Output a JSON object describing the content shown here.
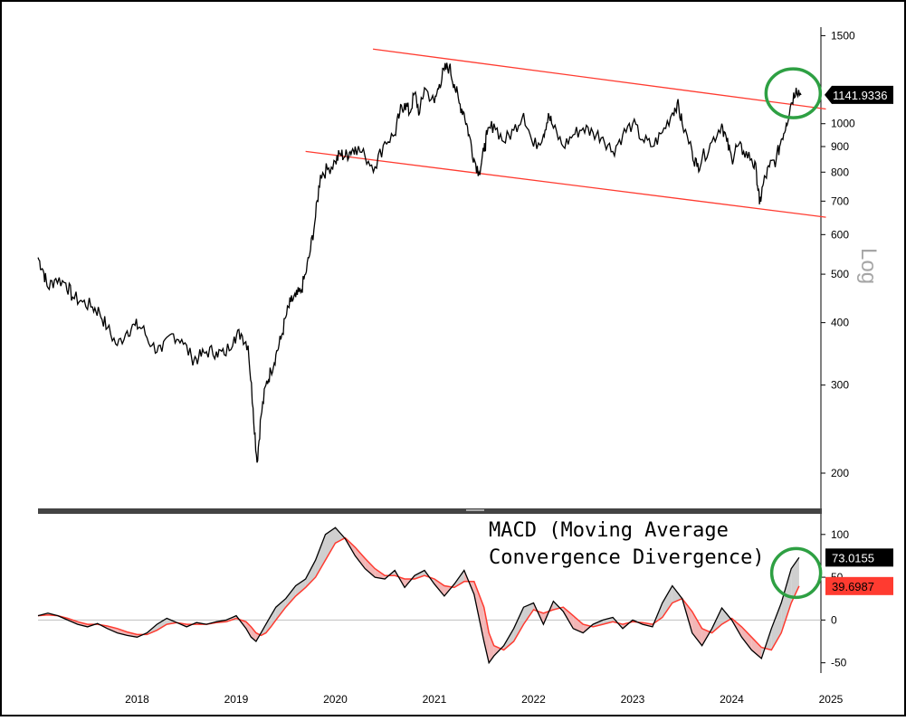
{
  "chart_data": [
    {
      "type": "line",
      "scale_label": "Log",
      "y_scale": "log",
      "ylim": [
        170,
        1560
      ],
      "y_ticks": [
        200,
        300,
        400,
        500,
        600,
        700,
        800,
        900,
        1000,
        1500
      ],
      "last_value_label": "1141.9336",
      "last_value": 1141.9336,
      "colors": {
        "price": "#000000",
        "channel": "#ff3b30",
        "highlight": "#2ea043",
        "badge": "#000000"
      },
      "x": [
        2017.5,
        2017.55,
        2017.6,
        2017.68,
        2017.78,
        2017.85,
        2017.95,
        2018.05,
        2018.12,
        2018.2,
        2018.3,
        2018.4,
        2018.48,
        2018.55,
        2018.65,
        2018.75,
        2018.85,
        2018.95,
        2019.05,
        2019.12,
        2019.2,
        2019.3,
        2019.38,
        2019.48,
        2019.55,
        2019.62,
        2019.67,
        2019.71,
        2019.75,
        2019.8,
        2019.85,
        2019.9,
        2019.95,
        2020.0,
        2020.05,
        2020.1,
        2020.15,
        2020.2,
        2020.25,
        2020.3,
        2020.35,
        2020.42,
        2020.5,
        2020.55,
        2020.6,
        2020.65,
        2020.7,
        2020.8,
        2020.9,
        2021.0,
        2021.1,
        2021.15,
        2021.2,
        2021.25,
        2021.3,
        2021.35,
        2021.4,
        2021.5,
        2021.55,
        2021.6,
        2021.65,
        2021.7,
        2021.75,
        2021.8,
        2021.85,
        2021.9,
        2021.95,
        2022.0,
        2022.03,
        2022.1,
        2022.2,
        2022.3,
        2022.4,
        2022.5,
        2022.6,
        2022.65,
        2022.7,
        2022.8,
        2022.9,
        2023.0,
        2023.1,
        2023.2,
        2023.3,
        2023.4,
        2023.5,
        2023.6,
        2023.7,
        2023.8,
        2023.9,
        2023.95,
        2024.0,
        2024.1,
        2024.15,
        2024.2,
        2024.3,
        2024.4,
        2024.45,
        2024.5,
        2024.55,
        2024.62,
        2024.7,
        2024.75,
        2024.78,
        2024.82,
        2024.88,
        2024.95,
        2025.0,
        2025.05,
        2025.1,
        2025.15,
        2025.2
      ],
      "y": [
        540,
        510,
        470,
        490,
        480,
        450,
        440,
        430,
        420,
        390,
        360,
        385,
        395,
        390,
        360,
        350,
        380,
        370,
        340,
        340,
        350,
        350,
        345,
        375,
        380,
        360,
        270,
        210,
        260,
        300,
        320,
        345,
        370,
        410,
        440,
        450,
        460,
        500,
        560,
        650,
        790,
        810,
        840,
        870,
        860,
        880,
        900,
        860,
        820,
        920,
        950,
        1050,
        1100,
        1050,
        1150,
        1050,
        1180,
        1100,
        1200,
        1280,
        1300,
        1200,
        1100,
        1050,
        950,
        850,
        800,
        880,
        950,
        1000,
        920,
        970,
        1050,
        900,
        950,
        1050,
        980,
        900,
        950,
        980,
        960,
        940,
        880,
        950,
        1000,
        930,
        900,
        960,
        1050,
        1100,
        1000,
        880,
        820,
        850,
        920,
        1000,
        920,
        850,
        900,
        880,
        850,
        800,
        690,
        760,
        820,
        850,
        930,
        1000,
        1100,
        1180,
        1142
      ],
      "channel_lines": [
        {
          "name": "upper",
          "x": [
            2020.88,
            2025.45
          ],
          "y": [
            1410,
            1070
          ]
        },
        {
          "name": "lower",
          "x": [
            2020.2,
            2025.45
          ],
          "y": [
            880,
            650
          ]
        }
      ]
    },
    {
      "type": "line",
      "title": "MACD (Moving Average Convergence Divergence)",
      "ylim": [
        -62,
        122
      ],
      "y_ticks": [
        -50,
        0,
        50,
        100
      ],
      "zero_line": true,
      "colors": {
        "macd": "#000000",
        "signal": "#ff3b30",
        "fill_above": "#cfcfcf",
        "fill_below": "#f2b6b6",
        "highlight": "#2ea043"
      },
      "x": [
        2017.5,
        2017.6,
        2017.7,
        2017.8,
        2017.9,
        2018.0,
        2018.1,
        2018.2,
        2018.3,
        2018.4,
        2018.5,
        2018.6,
        2018.7,
        2018.8,
        2018.9,
        2019.0,
        2019.1,
        2019.2,
        2019.3,
        2019.4,
        2019.5,
        2019.6,
        2019.65,
        2019.7,
        2019.75,
        2019.8,
        2019.85,
        2019.9,
        2020.0,
        2020.1,
        2020.2,
        2020.3,
        2020.4,
        2020.5,
        2020.6,
        2020.7,
        2020.8,
        2020.9,
        2021.0,
        2021.1,
        2021.2,
        2021.3,
        2021.4,
        2021.5,
        2021.6,
        2021.7,
        2021.8,
        2021.9,
        2022.0,
        2022.05,
        2022.1,
        2022.2,
        2022.3,
        2022.4,
        2022.5,
        2022.6,
        2022.7,
        2022.8,
        2022.9,
        2023.0,
        2023.1,
        2023.2,
        2023.3,
        2023.4,
        2023.5,
        2023.6,
        2023.7,
        2023.8,
        2023.9,
        2024.0,
        2024.1,
        2024.2,
        2024.3,
        2024.4,
        2024.5,
        2024.6,
        2024.7,
        2024.8,
        2024.9,
        2025.0,
        2025.1,
        2025.18
      ],
      "macd": [
        5,
        8,
        5,
        0,
        -5,
        -8,
        -4,
        -10,
        -15,
        -18,
        -20,
        -15,
        -5,
        2,
        -3,
        -8,
        -3,
        -5,
        -2,
        0,
        5,
        -10,
        -20,
        -25,
        -15,
        -5,
        5,
        15,
        25,
        40,
        48,
        70,
        100,
        108,
        95,
        75,
        60,
        50,
        48,
        58,
        38,
        52,
        58,
        42,
        28,
        42,
        58,
        30,
        -25,
        -50,
        -42,
        -30,
        -10,
        15,
        20,
        -5,
        22,
        10,
        -10,
        -15,
        -5,
        0,
        3,
        -10,
        0,
        -5,
        -8,
        20,
        40,
        25,
        -15,
        -30,
        -10,
        14,
        0,
        -20,
        -35,
        -45,
        -10,
        20,
        60,
        73
      ],
      "signal": [
        5,
        6,
        5,
        2,
        -2,
        -5,
        -5,
        -7,
        -10,
        -14,
        -17,
        -17,
        -12,
        -5,
        -3,
        -5,
        -5,
        -5,
        -3,
        -2,
        2,
        -2,
        -8,
        -15,
        -18,
        -15,
        -8,
        0,
        15,
        28,
        38,
        50,
        70,
        90,
        96,
        85,
        72,
        60,
        52,
        52,
        48,
        48,
        52,
        48,
        40,
        38,
        45,
        45,
        15,
        -15,
        -30,
        -35,
        -25,
        -5,
        12,
        8,
        12,
        15,
        5,
        -5,
        -8,
        -5,
        -2,
        -5,
        -2,
        -3,
        -5,
        3,
        20,
        25,
        10,
        -10,
        -15,
        -5,
        2,
        -8,
        -20,
        -32,
        -35,
        -15,
        20,
        39.6987
      ],
      "macd_label": "73.0155",
      "signal_label": "39.6987"
    }
  ],
  "x_axis": {
    "tick_labels": [
      "2018",
      "2019",
      "2020",
      "2021",
      "2022",
      "2023",
      "2024",
      "2025"
    ],
    "xlim": [
      2017.5,
      2025.4
    ]
  }
}
